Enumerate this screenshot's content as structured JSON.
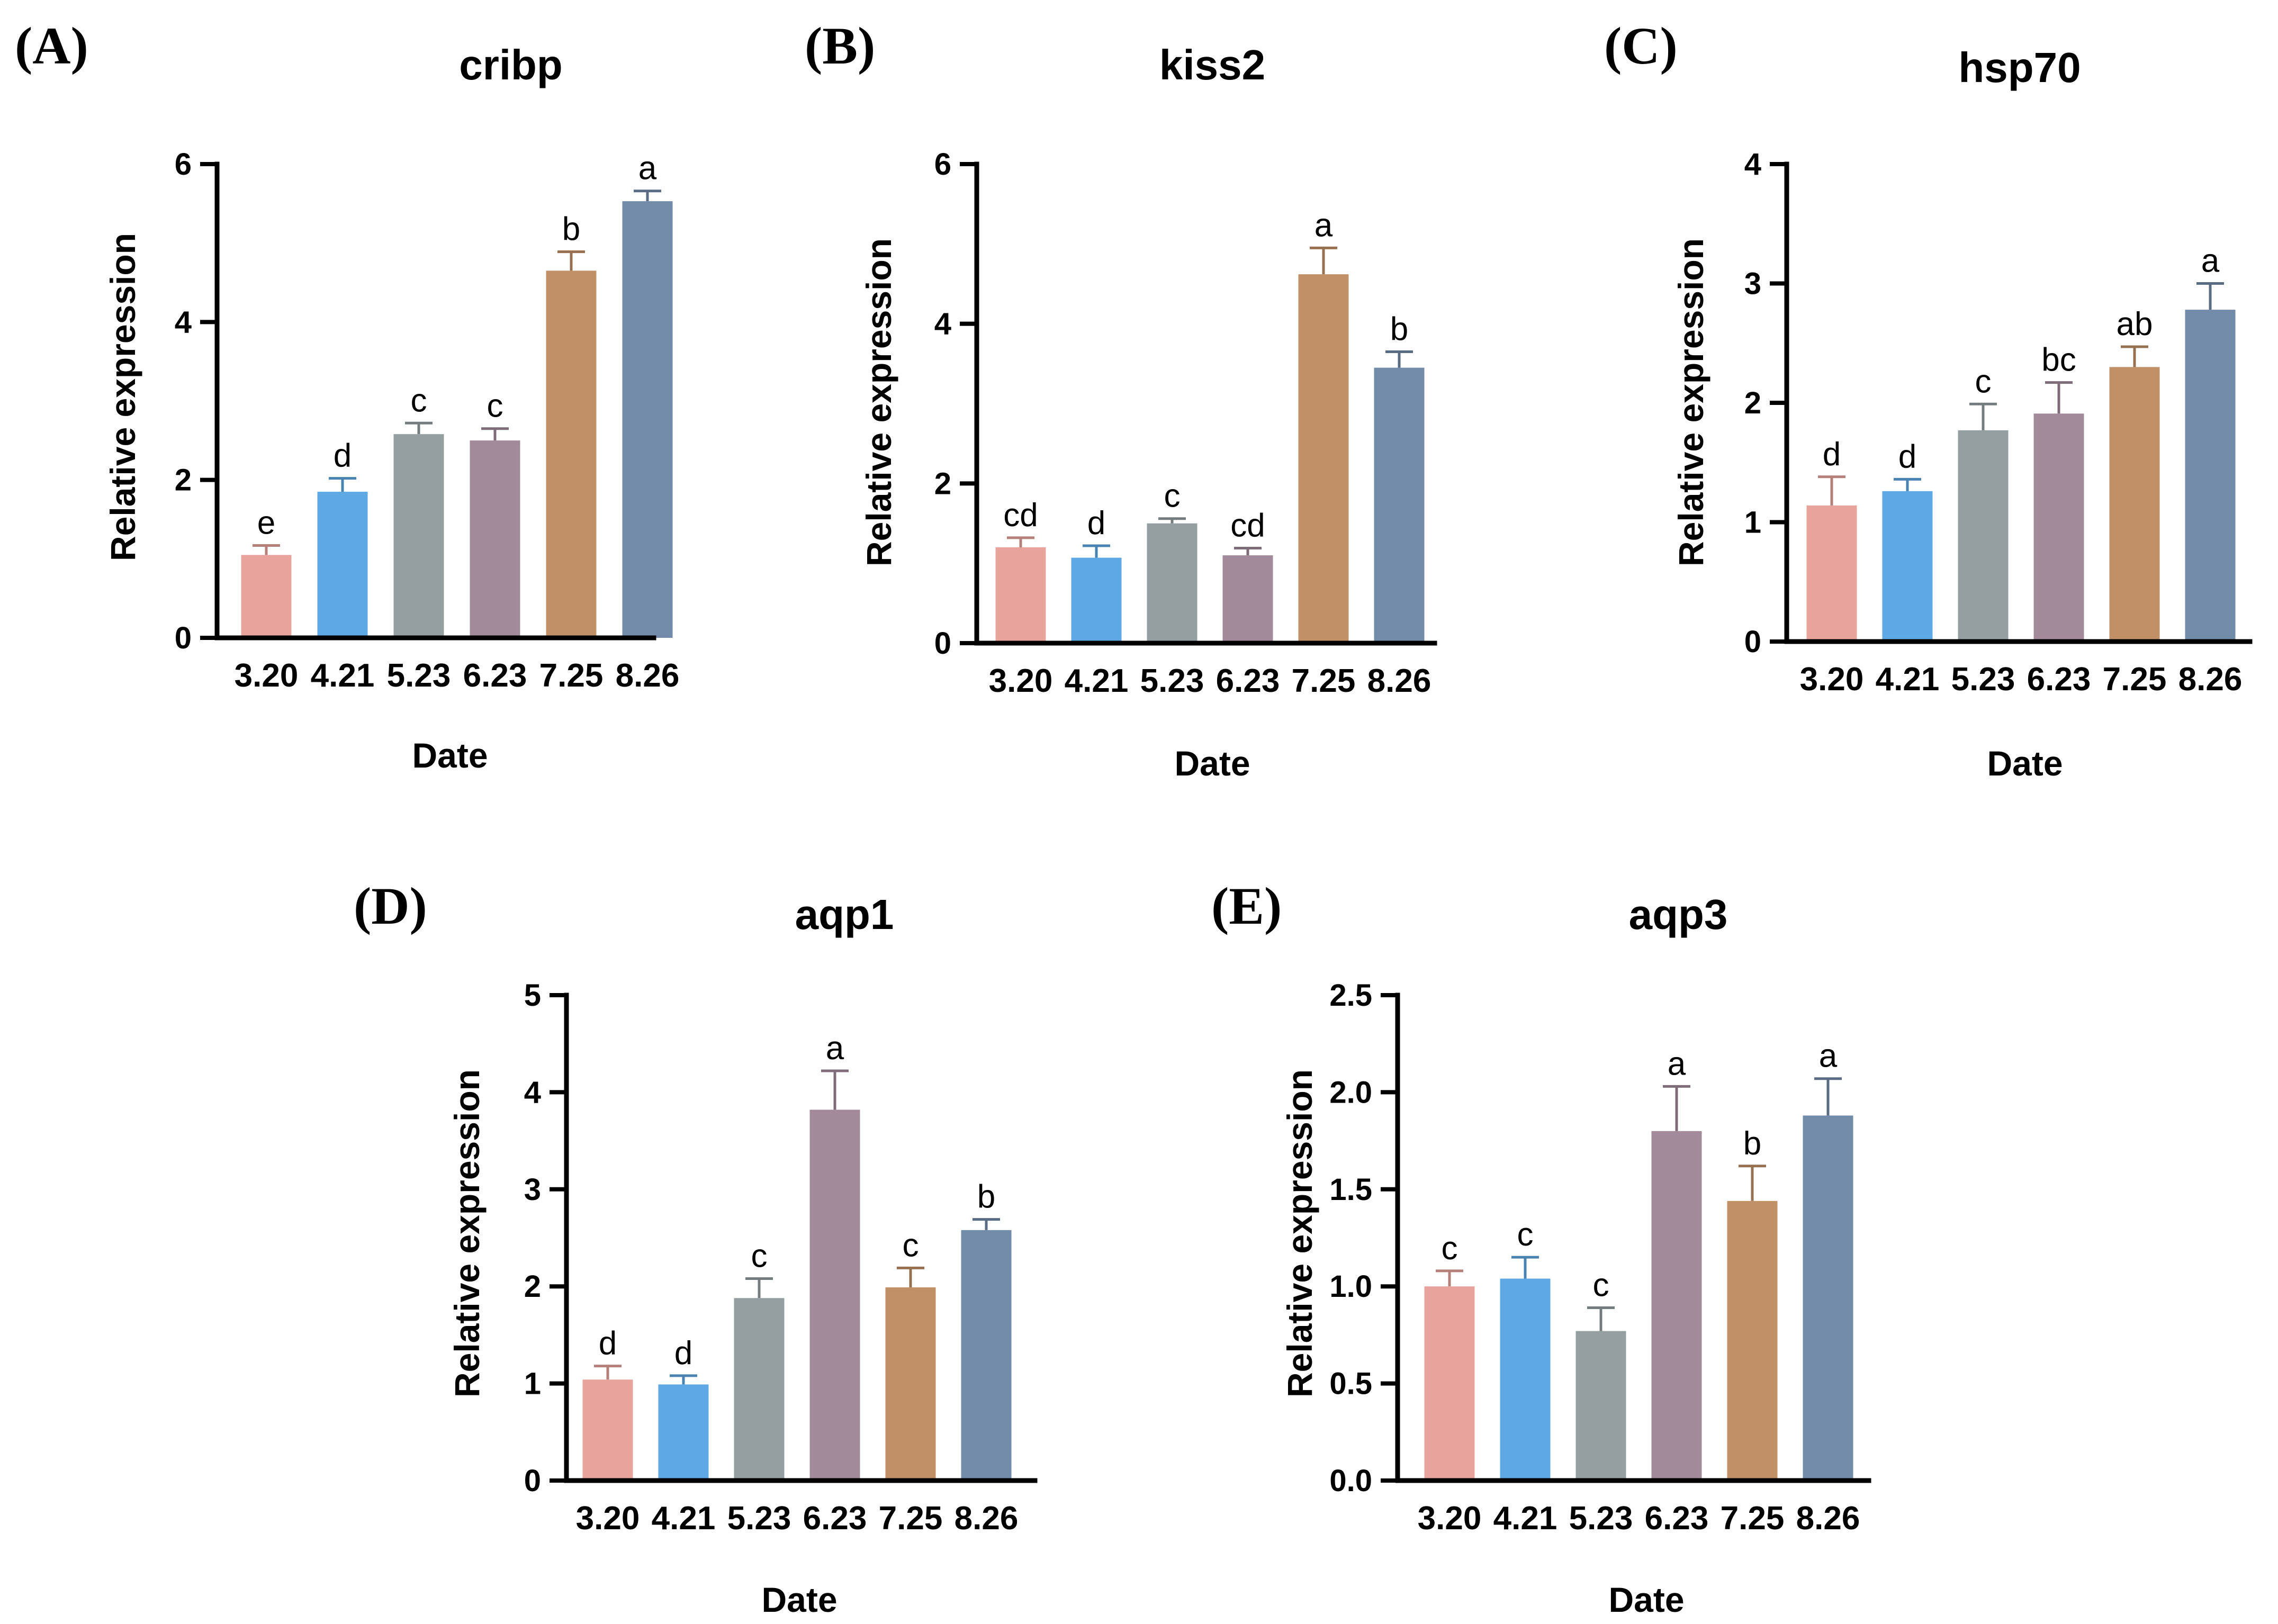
{
  "figure": {
    "colors": [
      "#e8a49c",
      "#5ea8e3",
      "#969fa0",
      "#a38a9b",
      "#c09066",
      "#728ba9"
    ]
  },
  "chart_data": [
    {
      "type": "bar",
      "panel_label": "(A)",
      "title": "cribp",
      "xlabel": "Date",
      "ylabel": "Relative expression",
      "categories": [
        "3.20",
        "4.21",
        "5.23",
        "6.23",
        "7.25",
        "8.26"
      ],
      "values": [
        1.05,
        1.85,
        2.58,
        2.5,
        4.65,
        5.53
      ],
      "errors": [
        0.12,
        0.17,
        0.14,
        0.15,
        0.24,
        0.13
      ],
      "significance": [
        "e",
        "d",
        "c",
        "c",
        "b",
        "a"
      ],
      "ylim": [
        0,
        6
      ],
      "yticks": [
        0,
        2,
        4,
        6
      ],
      "ytick_labels": [
        "0",
        "2",
        "4",
        "6"
      ]
    },
    {
      "type": "bar",
      "panel_label": "(B)",
      "title": "kiss2",
      "xlabel": "Date",
      "ylabel": "Relative expression",
      "categories": [
        "3.20",
        "4.21",
        "5.23",
        "6.23",
        "7.25",
        "8.26"
      ],
      "values": [
        1.2,
        1.07,
        1.5,
        1.1,
        4.62,
        3.45
      ],
      "errors": [
        0.12,
        0.15,
        0.06,
        0.09,
        0.33,
        0.2
      ],
      "significance": [
        "cd",
        "d",
        "c",
        "cd",
        "a",
        "b"
      ],
      "ylim": [
        0,
        6
      ],
      "yticks": [
        0,
        2,
        4,
        6
      ],
      "ytick_labels": [
        "0",
        "2",
        "4",
        "6"
      ]
    },
    {
      "type": "bar",
      "panel_label": "(C)",
      "title": "hsp70",
      "xlabel": "Date",
      "ylabel": "Relative expression",
      "categories": [
        "3.20",
        "4.21",
        "5.23",
        "6.23",
        "7.25",
        "8.26"
      ],
      "values": [
        1.14,
        1.26,
        1.77,
        1.91,
        2.3,
        2.78
      ],
      "errors": [
        0.24,
        0.1,
        0.22,
        0.26,
        0.17,
        0.22
      ],
      "significance": [
        "d",
        "d",
        "c",
        "bc",
        "ab",
        "a"
      ],
      "ylim": [
        0,
        4
      ],
      "yticks": [
        0,
        1,
        2,
        3,
        4
      ],
      "ytick_labels": [
        "0",
        "1",
        "2",
        "3",
        "4"
      ]
    },
    {
      "type": "bar",
      "panel_label": "(D)",
      "title": "aqp1",
      "xlabel": "Date",
      "ylabel": "Relative expression",
      "categories": [
        "3.20",
        "4.21",
        "5.23",
        "6.23",
        "7.25",
        "8.26"
      ],
      "values": [
        1.04,
        0.99,
        1.88,
        3.82,
        1.99,
        2.58
      ],
      "errors": [
        0.14,
        0.09,
        0.2,
        0.4,
        0.2,
        0.11
      ],
      "significance": [
        "d",
        "d",
        "c",
        "a",
        "c",
        "b"
      ],
      "ylim": [
        0,
        5
      ],
      "yticks": [
        0,
        1,
        2,
        3,
        4,
        5
      ],
      "ytick_labels": [
        "0",
        "1",
        "2",
        "3",
        "4",
        "5"
      ]
    },
    {
      "type": "bar",
      "panel_label": "(E)",
      "title": "aqp3",
      "xlabel": "Date",
      "ylabel": "Relative expression",
      "categories": [
        "3.20",
        "4.21",
        "5.23",
        "6.23",
        "7.25",
        "8.26"
      ],
      "values": [
        1.0,
        1.04,
        0.77,
        1.8,
        1.44,
        1.88
      ],
      "errors": [
        0.08,
        0.11,
        0.12,
        0.23,
        0.18,
        0.19
      ],
      "significance": [
        "c",
        "c",
        "c",
        "a",
        "b",
        "a"
      ],
      "ylim": [
        0,
        2.5
      ],
      "yticks": [
        0,
        0.5,
        1.0,
        1.5,
        2.0,
        2.5
      ],
      "ytick_labels": [
        "0.0",
        "0.5",
        "1.0",
        "1.5",
        "2.0",
        "2.5"
      ]
    }
  ]
}
